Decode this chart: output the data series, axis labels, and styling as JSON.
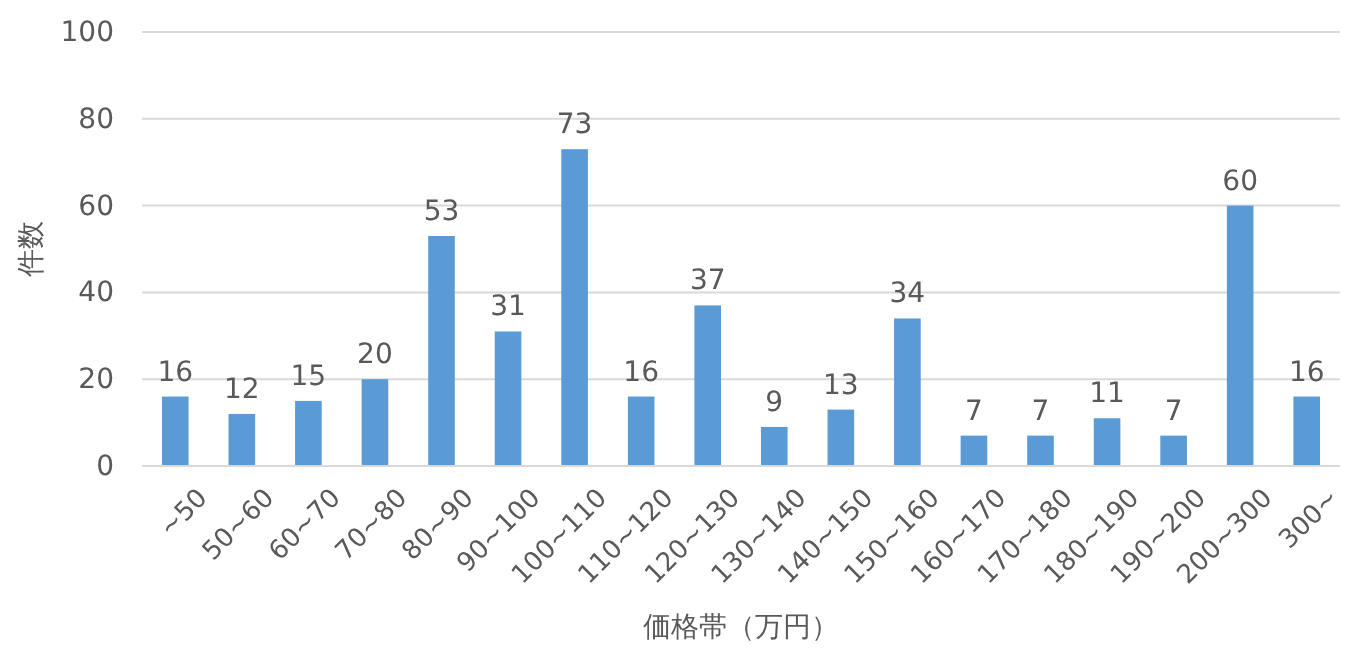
{
  "chart_data": {
    "type": "bar",
    "xlabel": "価格帯（万円）",
    "ylabel": "件数",
    "categories": [
      "~50",
      "50~60",
      "60~70",
      "70~80",
      "80~90",
      "90~100",
      "100~110",
      "110~120",
      "120~130",
      "130~140",
      "140~150",
      "150~160",
      "160~170",
      "170~180",
      "180~190",
      "190~200",
      "200~300",
      "300~"
    ],
    "values": [
      16,
      12,
      15,
      20,
      53,
      31,
      73,
      16,
      37,
      9,
      13,
      34,
      7,
      7,
      11,
      7,
      60,
      16
    ],
    "color": "#5b9bd5",
    "ylim": [
      0,
      100
    ],
    "yticks": [
      0,
      20,
      40,
      60,
      80,
      100
    ],
    "grid": "y",
    "data_labels": true
  }
}
